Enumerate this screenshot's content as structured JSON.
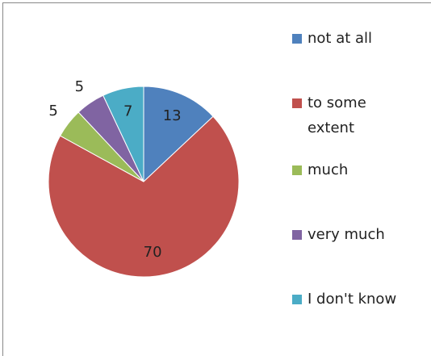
{
  "chart_data": {
    "type": "pie",
    "categories": [
      "not at all",
      "to some extent",
      "much",
      "very much",
      "I don't know"
    ],
    "values": [
      13,
      70,
      5,
      5,
      7
    ],
    "colors": [
      "#4f81bd",
      "#c0504d",
      "#9bbb59",
      "#8064a2",
      "#4bacc6"
    ],
    "legend": "right"
  }
}
